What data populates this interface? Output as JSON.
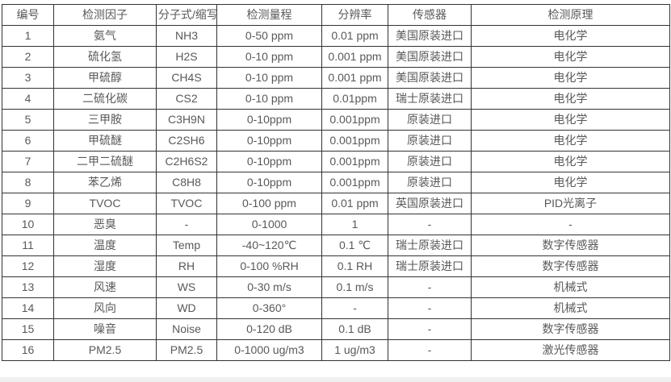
{
  "table": {
    "columns": [
      "编号",
      "检测因子",
      "分子式/缩写",
      "检测量程",
      "分辨率",
      "传感器",
      "检测原理"
    ],
    "rows": [
      [
        "1",
        "氨气",
        "NH3",
        "0-50 ppm",
        "0.01 ppm",
        "美国原装进口",
        "电化学"
      ],
      [
        "2",
        "硫化氢",
        "H2S",
        "0-10 ppm",
        "0.001 ppm",
        "美国原装进口",
        "电化学"
      ],
      [
        "3",
        "甲硫醇",
        "CH4S",
        "0-10 ppm",
        "0.001 ppm",
        "美国原装进口",
        "电化学"
      ],
      [
        "4",
        "二硫化碳",
        "CS2",
        "0-10 ppm",
        "0.01ppm",
        "瑞士原装进口",
        "电化学"
      ],
      [
        "5",
        "三甲胺",
        "C3H9N",
        "0-10ppm",
        "0.001ppm",
        "原装进口",
        "电化学"
      ],
      [
        "6",
        "甲硫醚",
        "C2SH6",
        "0-10ppm",
        "0.001ppm",
        "原装进口",
        "电化学"
      ],
      [
        "7",
        "二甲二硫醚",
        "C2H6S2",
        "0-10ppm",
        "0.001ppm",
        "原装进口",
        "电化学"
      ],
      [
        "8",
        "苯乙烯",
        "C8H8",
        "0-10ppm",
        "0.001ppm",
        "原装进口",
        "电化学"
      ],
      [
        "9",
        "TVOC",
        "TVOC",
        "0-100 ppm",
        "0.01 ppm",
        "英国原装进口",
        "PID光离子"
      ],
      [
        "10",
        "恶臭",
        "-",
        "0-1000",
        "1",
        "-",
        "-"
      ],
      [
        "11",
        "温度",
        "Temp",
        "-40~120℃",
        "0.1 ℃",
        "瑞士原装进口",
        "数字传感器"
      ],
      [
        "12",
        "湿度",
        "RH",
        "0-100 %RH",
        "0.1 RH",
        "瑞士原装进口",
        "数字传感器"
      ],
      [
        "13",
        "风速",
        "WS",
        "0-30 m/s",
        "0.1 m/s",
        "-",
        "机械式"
      ],
      [
        "14",
        "风向",
        "WD",
        "0-360°",
        "-",
        "-",
        "机械式"
      ],
      [
        "15",
        "噪音",
        "Noise",
        "0-120 dB",
        "0.1 dB",
        "-",
        "数字传感器"
      ],
      [
        "16",
        "PM2.5",
        "PM2.5",
        "0-1000 ug/m3",
        "1 ug/m3",
        "-",
        "激光传感器"
      ]
    ],
    "colors": {
      "border": "#333333",
      "text": "#595959",
      "background": "#ffffff",
      "page_edge": "#f0f0f0"
    }
  }
}
